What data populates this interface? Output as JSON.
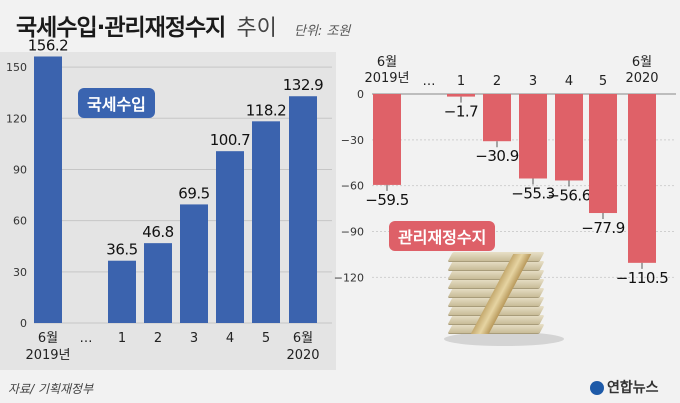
{
  "header": {
    "title": "국세수입·관리재정수지",
    "subtitle": "추이",
    "unit": "단위: 조원"
  },
  "footer": {
    "source": "자료/ 기획재정부",
    "brand": "연합뉴스"
  },
  "colors": {
    "tax_bar": "#3b63ae",
    "deficit_bar": "#df6168",
    "left_bg": "#e4e4e4",
    "page_bg": "#f2f2f2"
  },
  "chart_data": [
    {
      "type": "bar",
      "badge": "국세수입",
      "categories": [
        "6월\n2019년",
        "…",
        "1",
        "2",
        "3",
        "4",
        "5",
        "6월\n2020"
      ],
      "values": [
        156.2,
        null,
        36.5,
        46.8,
        69.5,
        100.7,
        118.2,
        132.9
      ],
      "value_labels": [
        "156.2",
        "",
        "36.5",
        "46.8",
        "69.5",
        "100.7",
        "118.2",
        "132.9"
      ],
      "yticks": [
        0,
        30,
        60,
        90,
        120,
        150
      ],
      "ylim": [
        0,
        160
      ],
      "grid": true
    },
    {
      "type": "bar",
      "badge": "관리재정수지",
      "categories": [
        "6월\n2019년",
        "…",
        "1",
        "2",
        "3",
        "4",
        "5",
        "6월\n2020"
      ],
      "values": [
        -59.5,
        null,
        -1.7,
        -30.9,
        -55.3,
        -56.6,
        -77.9,
        -110.5
      ],
      "value_labels": [
        "−59.5",
        "",
        "−1.7",
        "−30.9",
        "−55.3",
        "−56.6",
        "−77.9",
        "−110.5"
      ],
      "yticks": [
        0,
        -30,
        -60,
        -90,
        -120
      ],
      "ylim": [
        -125,
        0
      ],
      "grid": true
    }
  ]
}
